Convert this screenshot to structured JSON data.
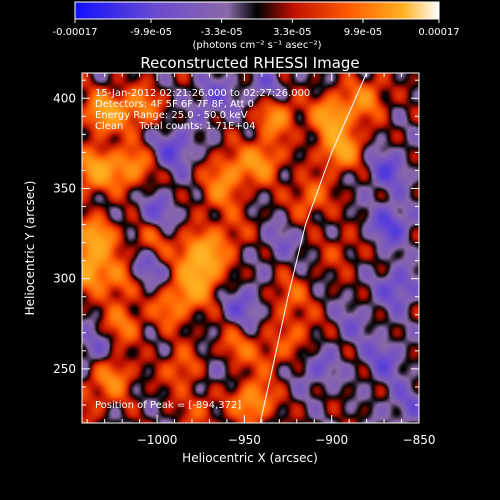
{
  "colorbar": {
    "tick_labels": [
      "-0.00017",
      "-9.9e-05",
      "-3.3e-05",
      "3.3e-05",
      "9.9e-05",
      "0.00017"
    ],
    "tick_values": [
      -0.00017,
      -9.9e-05,
      -3.3e-05,
      3.3e-05,
      9.9e-05,
      0.00017
    ],
    "range": [
      -0.00017,
      0.00017
    ],
    "units_label": "(photons cm⁻² s⁻¹ asec⁻²)"
  },
  "chart_data": {
    "type": "heatmap",
    "title": "Reconstructed RHESSI Image",
    "xlabel": "Heliocentric X (arcsec)",
    "ylabel": "Heliocentric Y (arcsec)",
    "xlim": [
      -1043,
      -850
    ],
    "ylim": [
      220,
      414
    ],
    "x_ticks": [
      -1000,
      -950,
      -900,
      -850
    ],
    "x_tick_labels": [
      "−1000",
      "−950",
      "−900",
      "−850"
    ],
    "y_ticks": [
      250,
      300,
      350,
      400
    ],
    "y_tick_labels": [
      "250",
      "300",
      "350",
      "400"
    ],
    "info_lines": [
      "15-Jan-2012 02:21:26.000 to 02:27:26.000",
      "Detectors: 4F 5F 6F 7F 8F, Att 0",
      "Energy Range: 25.0 - 50.0 keV",
      "Clean     Total counts: 1.71E+04"
    ],
    "peak_annotation": "Position of Peak = [-894,372]",
    "peak": [
      -894,
      372
    ],
    "limb_points": [
      [
        -941,
        220
      ],
      [
        -934,
        250
      ],
      [
        -925,
        290
      ],
      [
        -915,
        330
      ],
      [
        -900,
        370
      ],
      [
        -880,
        414
      ]
    ],
    "blobs": [
      {
        "x": -1030,
        "y": 392,
        "v": 1.0
      },
      {
        "x": -1010,
        "y": 395,
        "v": 0.7
      },
      {
        "x": -1035,
        "y": 360,
        "v": 1.0
      },
      {
        "x": -1015,
        "y": 362,
        "v": 0.8
      },
      {
        "x": -1000,
        "y": 336,
        "v": -0.5
      },
      {
        "x": -990,
        "y": 372,
        "v": -0.6
      },
      {
        "x": -968,
        "y": 400,
        "v": -0.5
      },
      {
        "x": -938,
        "y": 405,
        "v": -0.4
      },
      {
        "x": -900,
        "y": 390,
        "v": 1.0
      },
      {
        "x": -895,
        "y": 372,
        "v": 1.0
      },
      {
        "x": -880,
        "y": 400,
        "v": 0.7
      },
      {
        "x": -932,
        "y": 390,
        "v": 0.8
      },
      {
        "x": -940,
        "y": 365,
        "v": 0.8
      },
      {
        "x": -958,
        "y": 360,
        "v": 0.6
      },
      {
        "x": -965,
        "y": 347,
        "v": 0.5
      },
      {
        "x": -912,
        "y": 345,
        "v": 0.6
      },
      {
        "x": -868,
        "y": 360,
        "v": -0.6
      },
      {
        "x": -866,
        "y": 330,
        "v": -0.7
      },
      {
        "x": -862,
        "y": 295,
        "v": -0.6
      },
      {
        "x": -870,
        "y": 255,
        "v": -0.5
      },
      {
        "x": -858,
        "y": 230,
        "v": -0.4
      },
      {
        "x": -888,
        "y": 275,
        "v": -0.3
      },
      {
        "x": -908,
        "y": 250,
        "v": -0.4
      },
      {
        "x": -1035,
        "y": 322,
        "v": 1.0
      },
      {
        "x": -1040,
        "y": 305,
        "v": 1.0
      },
      {
        "x": -1020,
        "y": 300,
        "v": 0.7
      },
      {
        "x": -1003,
        "y": 322,
        "v": 0.5
      },
      {
        "x": -1008,
        "y": 305,
        "v": -0.6
      },
      {
        "x": -972,
        "y": 310,
        "v": 0.8
      },
      {
        "x": -978,
        "y": 315,
        "v": 0.6
      },
      {
        "x": -958,
        "y": 325,
        "v": 0.4
      },
      {
        "x": -950,
        "y": 285,
        "v": -0.5
      },
      {
        "x": -992,
        "y": 284,
        "v": 0.6
      },
      {
        "x": -978,
        "y": 296,
        "v": 0.9
      },
      {
        "x": -1020,
        "y": 275,
        "v": 0.6
      },
      {
        "x": -1037,
        "y": 262,
        "v": -0.4
      },
      {
        "x": -1025,
        "y": 245,
        "v": 0.7
      },
      {
        "x": -1040,
        "y": 232,
        "v": 0.3
      },
      {
        "x": -985,
        "y": 250,
        "v": 0.6
      },
      {
        "x": -970,
        "y": 248,
        "v": -0.3
      },
      {
        "x": -955,
        "y": 262,
        "v": 0.5
      },
      {
        "x": -935,
        "y": 258,
        "v": 0.4
      },
      {
        "x": -925,
        "y": 290,
        "v": 0.5
      },
      {
        "x": -918,
        "y": 270,
        "v": 0.4
      },
      {
        "x": -930,
        "y": 320,
        "v": -0.3
      },
      {
        "x": -945,
        "y": 232,
        "v": 0.9
      },
      {
        "x": -975,
        "y": 228,
        "v": 0.4
      },
      {
        "x": -895,
        "y": 315,
        "v": 0.3
      }
    ]
  }
}
